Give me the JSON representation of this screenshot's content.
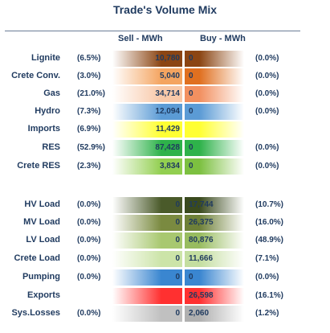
{
  "title": "Trade's Volume Mix",
  "headers": {
    "sell": "Sell - MWh",
    "buy": "Buy - MWh"
  },
  "rows": [
    {
      "label": "Lignite",
      "sell_pct": "(6.5%)",
      "sell": "10,780",
      "buy": "0",
      "buy_pct": "(0.0%)",
      "sell_color": "#8b4513",
      "buy_color": "#8b4513"
    },
    {
      "label": "Crete Conv.",
      "sell_pct": "(3.0%)",
      "sell": "5,040",
      "buy": "0",
      "buy_pct": "(0.0%)",
      "sell_color": "#f4a460",
      "buy_color": "#e07020"
    },
    {
      "label": "Gas",
      "sell_pct": "(21.0%)",
      "sell": "34,714",
      "buy": "0",
      "buy_pct": "(0.0%)",
      "sell_color": "#f8c8a8",
      "buy_color": "#f29060"
    },
    {
      "label": "Hydro",
      "sell_pct": "(7.3%)",
      "sell": "12,094",
      "buy": "0",
      "buy_pct": "(0.0%)",
      "sell_color": "#5b9bd5",
      "buy_color": "#5b9bd5"
    },
    {
      "label": "Imports",
      "sell_pct": "(6.9%)",
      "sell": "11,429",
      "buy": "",
      "buy_pct": "",
      "sell_color": "#ffff33",
      "buy_color": "#ffff33"
    },
    {
      "label": "RES",
      "sell_pct": "(52.9%)",
      "sell": "87,428",
      "buy": "0",
      "buy_pct": "(0.0%)",
      "sell_color": "#2eb24a",
      "buy_color": "#2eb24a"
    },
    {
      "label": "Crete RES",
      "sell_pct": "(2.3%)",
      "sell": "3,834",
      "buy": "0",
      "buy_pct": "(0.0%)",
      "sell_color": "#92cf50",
      "buy_color": "#7cc040"
    },
    {
      "label": "HV Load",
      "sell_pct": "(0.0%)",
      "sell": "0",
      "buy": "17,744",
      "buy_pct": "(10.7%)",
      "sell_color": "#4a5a2a",
      "buy_color": "#3a4a1e"
    },
    {
      "label": "MV Load",
      "sell_pct": "(0.0%)",
      "sell": "0",
      "buy": "26,375",
      "buy_pct": "(16.0%)",
      "sell_color": "#7a8a40",
      "buy_color": "#6e8038"
    },
    {
      "label": "LV Load",
      "sell_pct": "(0.0%)",
      "sell": "0",
      "buy": "80,876",
      "buy_pct": "(48.9%)",
      "sell_color": "#a8c870",
      "buy_color": "#98bc60"
    },
    {
      "label": "Crete Load",
      "sell_pct": "(0.0%)",
      "sell": "0",
      "buy": "11,666",
      "buy_pct": "(7.1%)",
      "sell_color": "#cce4a8",
      "buy_color": "#c4dea0"
    },
    {
      "label": "Pumping",
      "sell_pct": "(0.0%)",
      "sell": "0",
      "buy": "0",
      "buy_pct": "(0.0%)",
      "sell_color": "#3a86d0",
      "buy_color": "#3a86d0"
    },
    {
      "label": "Exports",
      "sell_pct": "",
      "sell": "",
      "buy": "26,598",
      "buy_pct": "(16.1%)",
      "sell_color": "#ff3030",
      "buy_color": "#ff3030"
    },
    {
      "label": "Sys.Losses",
      "sell_pct": "(0.0%)",
      "sell": "0",
      "buy": "2,060",
      "buy_pct": "(1.2%)",
      "sell_color": "#c0c0c0",
      "buy_color": "#b0b0b0"
    }
  ]
}
